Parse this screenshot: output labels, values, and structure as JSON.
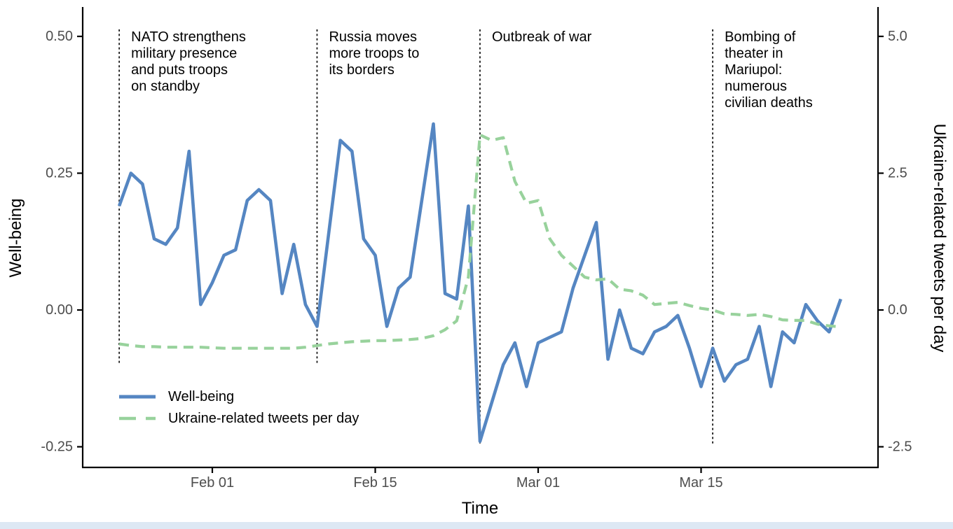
{
  "page": {
    "background": "#ffffff",
    "footer_strip_color": "#dde8f4"
  },
  "chart_data": {
    "type": "line",
    "title": "",
    "xlabel": "Time",
    "ylabel_left": "Well-being",
    "ylabel_right": "Ukraine-related tweets per day",
    "grid": "off",
    "x_ticks": [
      {
        "label": "Feb 01",
        "day_index": 8
      },
      {
        "label": "Feb 15",
        "day_index": 22
      },
      {
        "label": "Mar 01",
        "day_index": 36
      },
      {
        "label": "Mar 15",
        "day_index": 50
      }
    ],
    "left_axis": {
      "tick_labels": [
        "0.50",
        "0.25",
        "0.00",
        "-0.25"
      ],
      "tick_values": [
        0.5,
        0.25,
        0.0,
        -0.25
      ],
      "range": [
        -0.29,
        0.55
      ]
    },
    "right_axis": {
      "tick_labels": [
        "5.0",
        "2.5",
        "0.0",
        "-2.5"
      ],
      "tick_values": [
        5.0,
        2.5,
        0.0,
        -2.5
      ],
      "range": [
        -2.9,
        5.5
      ],
      "scale_factor_vs_left": 10
    },
    "colors": {
      "wellbeing_line": "#5586c2",
      "tweets_line": "#98d29c",
      "event_line": "#1a1a1a",
      "tick_label": "#4d4d4d",
      "axis_line": "#000000"
    },
    "dates": [
      "Jan 24",
      "Jan 25",
      "Jan 26",
      "Jan 27",
      "Jan 28",
      "Jan 29",
      "Jan 30",
      "Jan 31",
      "Feb 01",
      "Feb 02",
      "Feb 03",
      "Feb 04",
      "Feb 05",
      "Feb 06",
      "Feb 07",
      "Feb 08",
      "Feb 09",
      "Feb 10",
      "Feb 11",
      "Feb 12",
      "Feb 13",
      "Feb 14",
      "Feb 15",
      "Feb 16",
      "Feb 17",
      "Feb 18",
      "Feb 19",
      "Feb 20",
      "Feb 21",
      "Feb 22",
      "Feb 23",
      "Feb 24",
      "Feb 25",
      "Feb 26",
      "Feb 27",
      "Feb 28",
      "Mar 01",
      "Mar 02",
      "Mar 03",
      "Mar 04",
      "Mar 05",
      "Mar 06",
      "Mar 07",
      "Mar 08",
      "Mar 09",
      "Mar 10",
      "Mar 11",
      "Mar 12",
      "Mar 13",
      "Mar 14",
      "Mar 15",
      "Mar 16",
      "Mar 17",
      "Mar 18",
      "Mar 19",
      "Mar 20",
      "Mar 21",
      "Mar 22",
      "Mar 23",
      "Mar 24",
      "Mar 25",
      "Mar 26",
      "Mar 27"
    ],
    "series": [
      {
        "name": "Well-being",
        "axis": "left",
        "style": "solid",
        "color": "#5586c2",
        "values": [
          0.19,
          0.25,
          0.23,
          0.13,
          0.12,
          0.15,
          0.29,
          0.01,
          0.05,
          0.1,
          0.11,
          0.2,
          0.22,
          0.2,
          0.03,
          0.12,
          0.01,
          -0.03,
          0.14,
          0.31,
          0.29,
          0.13,
          0.1,
          -0.03,
          0.04,
          0.06,
          0.2,
          0.34,
          0.03,
          0.02,
          0.19,
          -0.24,
          -0.17,
          -0.1,
          -0.06,
          -0.14,
          -0.06,
          -0.05,
          -0.04,
          0.04,
          0.1,
          0.16,
          -0.09,
          0.0,
          -0.07,
          -0.08,
          -0.04,
          -0.03,
          -0.01,
          -0.07,
          -0.14,
          -0.07,
          -0.13,
          -0.1,
          -0.09,
          -0.03,
          -0.14,
          -0.04,
          -0.06,
          0.01,
          -0.02,
          -0.04,
          0.02
        ]
      },
      {
        "name": "Ukraine-related tweets per day",
        "axis": "right",
        "style": "dashed",
        "color": "#98d29c",
        "values": [
          -0.62,
          -0.65,
          -0.67,
          -0.67,
          -0.68,
          -0.68,
          -0.68,
          -0.68,
          -0.69,
          -0.7,
          -0.7,
          -0.7,
          -0.7,
          -0.7,
          -0.7,
          -0.7,
          -0.68,
          -0.65,
          -0.62,
          -0.6,
          -0.58,
          -0.57,
          -0.56,
          -0.56,
          -0.55,
          -0.54,
          -0.52,
          -0.47,
          -0.36,
          -0.2,
          0.6,
          3.2,
          3.1,
          3.15,
          2.35,
          1.95,
          2.0,
          1.3,
          1.0,
          0.8,
          0.6,
          0.55,
          0.57,
          0.38,
          0.35,
          0.27,
          0.1,
          0.12,
          0.14,
          0.08,
          0.03,
          0.0,
          -0.07,
          -0.08,
          -0.1,
          -0.08,
          -0.12,
          -0.18,
          -0.19,
          -0.19,
          -0.26,
          -0.29,
          -0.31
        ]
      }
    ],
    "events": [
      {
        "date": "Jan 24",
        "day_index": 0,
        "label_lines": [
          "NATO strengthens",
          "military presence",
          "and puts troops",
          "on standby"
        ]
      },
      {
        "date": "Feb 10",
        "day_index": 17,
        "label_lines": [
          "Russia moves",
          "more troops to",
          "its borders"
        ]
      },
      {
        "date": "Feb 24",
        "day_index": 31,
        "label_lines": [
          "Outbreak of war"
        ]
      },
      {
        "date": "Mar 16",
        "day_index": 51,
        "label_lines": [
          "Bombing of",
          "theater in",
          "Mariupol:",
          "numerous",
          "civilian deaths"
        ]
      }
    ],
    "legend": {
      "position": "inside-bottom-left",
      "entries": [
        {
          "label": "Well-being",
          "color": "#5586c2",
          "style": "solid"
        },
        {
          "label": "Ukraine-related tweets per day",
          "color": "#98d29c",
          "style": "dashed"
        }
      ]
    }
  }
}
